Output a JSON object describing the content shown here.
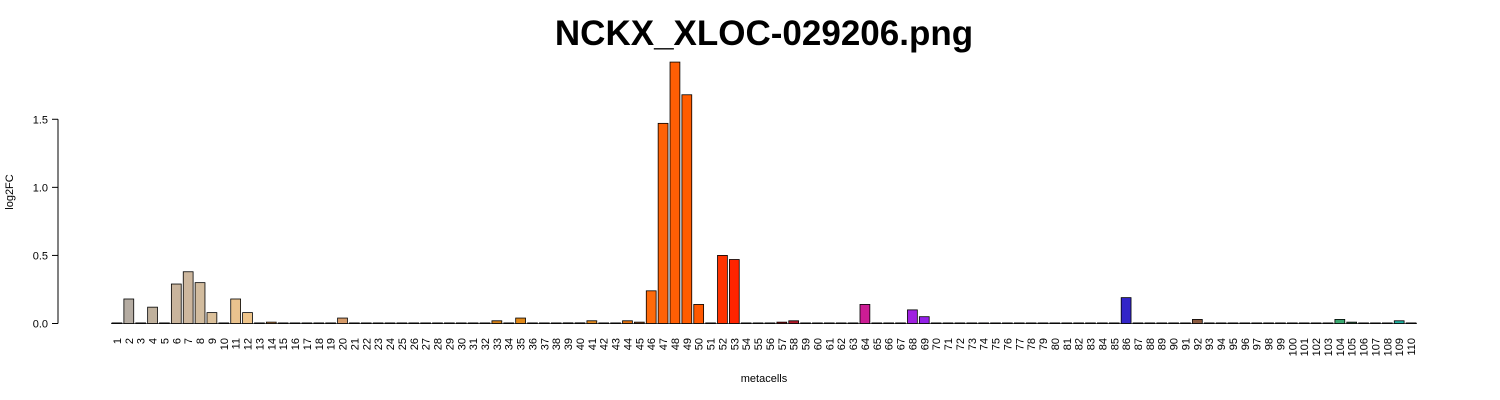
{
  "chart_data": {
    "type": "bar",
    "title": "NCKX_XLOC-029206.png",
    "xlabel": "metacells",
    "ylabel": "log2FC",
    "ylim": [
      0,
      1.95
    ],
    "yticks": [
      "0.0",
      "0.5",
      "1.0",
      "1.5"
    ],
    "grid": false,
    "categories": [
      "1",
      "2",
      "3",
      "4",
      "5",
      "6",
      "7",
      "8",
      "9",
      "10",
      "11",
      "12",
      "13",
      "14",
      "15",
      "16",
      "17",
      "18",
      "19",
      "20",
      "21",
      "22",
      "23",
      "24",
      "25",
      "26",
      "27",
      "28",
      "29",
      "30",
      "31",
      "32",
      "33",
      "34",
      "35",
      "36",
      "37",
      "38",
      "39",
      "40",
      "41",
      "42",
      "43",
      "44",
      "45",
      "46",
      "47",
      "48",
      "49",
      "50",
      "51",
      "52",
      "53",
      "54",
      "55",
      "56",
      "57",
      "58",
      "59",
      "60",
      "61",
      "62",
      "63",
      "64",
      "65",
      "66",
      "67",
      "68",
      "69",
      "70",
      "71",
      "72",
      "73",
      "74",
      "75",
      "76",
      "77",
      "78",
      "79",
      "80",
      "81",
      "82",
      "83",
      "84",
      "85",
      "86",
      "87",
      "88",
      "89",
      "90",
      "91",
      "92",
      "93",
      "94",
      "95",
      "96",
      "97",
      "98",
      "99",
      "100",
      "101",
      "102",
      "103",
      "104",
      "105",
      "106",
      "107",
      "108",
      "109",
      "110"
    ],
    "values": [
      0,
      0.18,
      0,
      0.12,
      0,
      0.29,
      0.38,
      0.3,
      0.08,
      0,
      0.18,
      0.08,
      0,
      0.01,
      0,
      0,
      0,
      0,
      0,
      0.04,
      0,
      0,
      0,
      0,
      0,
      0,
      0,
      0,
      0,
      0,
      0,
      0,
      0.02,
      0,
      0.04,
      0,
      0,
      0,
      0.005,
      0.005,
      0.02,
      0,
      0,
      0.02,
      0.01,
      0.24,
      1.47,
      1.92,
      1.68,
      0.14,
      0,
      0.5,
      0.47,
      0,
      0,
      0,
      0.01,
      0.02,
      0,
      0,
      0,
      0,
      0,
      0.14,
      0,
      0,
      0,
      0.1,
      0.05,
      0,
      0,
      0,
      0,
      0,
      0,
      0,
      0,
      0,
      0,
      0,
      0,
      0,
      0,
      0,
      0,
      0.19,
      0,
      0,
      0,
      0,
      0,
      0.03,
      0,
      0,
      0,
      0,
      0,
      0,
      0,
      0,
      0,
      0,
      0,
      0.03,
      0.01,
      0,
      0,
      0,
      0.02,
      0
    ],
    "colors": [
      "#a09080",
      "#b5aca2",
      "#b8a58e",
      "#bfb09c",
      "#c4b09a",
      "#c9b49c",
      "#cdb79e",
      "#d2bc9e",
      "#dbc09a",
      "#e6c090",
      "#e9c28e",
      "#eec48a",
      "#e3a86e",
      "#d79250",
      "#d08840",
      "#c98030",
      "#c37a2a",
      "#c07a40",
      "#c89060",
      "#d59a68",
      "#cc8c58",
      "#c68a50",
      "#c08040",
      "#b87a34",
      "#b07030",
      "#a86828",
      "#9c6028",
      "#9a5c20",
      "#985820",
      "#a05e20",
      "#b86a1e",
      "#cc7418",
      "#d48018",
      "#d88818",
      "#e08818",
      "#e88818",
      "#f08818",
      "#f09018",
      "#302818",
      "#503020",
      "#e08820",
      "#e07a10",
      "#f07a10",
      "#e07010",
      "#a06030",
      "#ff6a0a",
      "#ff6206",
      "#ff5e04",
      "#ff5c00",
      "#ff5800",
      "#ff4a00",
      "#ff3300",
      "#ff2400",
      "#e42000",
      "#d02010",
      "#c01010",
      "#a01010",
      "#b01828",
      "#b81c40",
      "#c02060",
      "#c81c78",
      "#cc1c88",
      "#c81c90",
      "#cc1c94",
      "#c81ca0",
      "#b81cb8",
      "#a81ccc",
      "#a020e0",
      "#9420e8",
      "#8820e8",
      "#7820e0",
      "#6820d8",
      "#5820d0",
      "#5020c8",
      "#4820c8",
      "#4020c8",
      "#3820c8",
      "#3020c8",
      "#2e20c8",
      "#2c20c8",
      "#2c22c8",
      "#2c24c8",
      "#2e24c8",
      "#3024c8",
      "#3224c8",
      "#3224c8",
      "#a07a5a",
      "#8a6a50",
      "#7a5a40",
      "#8a5a30",
      "#8a5a40",
      "#8a5a40",
      "#5a8a70",
      "#4aa080",
      "#40a888",
      "#3ab090",
      "#38b098",
      "#36b09a",
      "#34b09c",
      "#32b09e",
      "#30b0a0",
      "#30b0a0",
      "#30b0a0",
      "#3aa870",
      "#3a7050",
      "#3aa070",
      "#3aa880",
      "#30b0a0",
      "#20b0a0",
      "#20b0a0"
    ]
  }
}
